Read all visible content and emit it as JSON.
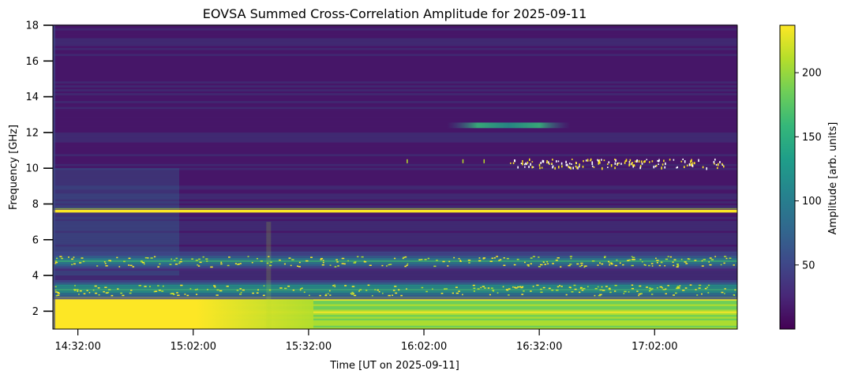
{
  "chart_data": {
    "type": "heatmap",
    "title": "EOVSA Summed Cross-Correlation Amplitude for 2025-09-11",
    "xlabel": "Time [UT on 2025-09-11]",
    "ylabel": "Frequency [GHz]",
    "colorbar_label": "Amplitude [arb. units]",
    "colormap": "viridis",
    "colors": [
      "#440154",
      "#482878",
      "#3e4989",
      "#31688e",
      "#26828e",
      "#1f9e89",
      "#35b779",
      "#6ece58",
      "#b5de2b",
      "#fde725"
    ],
    "xlim": [
      "14:25:30",
      "17:23:30"
    ],
    "ylim": [
      1.0,
      18.0
    ],
    "clim": [
      0,
      237
    ],
    "x_ticks": [
      "14:32:00",
      "15:02:00",
      "15:32:00",
      "16:02:00",
      "16:32:00",
      "17:02:00"
    ],
    "y_ticks": [
      2,
      4,
      6,
      8,
      10,
      12,
      14,
      16,
      18
    ],
    "colorbar_ticks": [
      50,
      100,
      150,
      200
    ],
    "features": [
      {
        "kind": "continuum",
        "freq_range": [
          1.0,
          2.8
        ],
        "amplitude": 237
      },
      {
        "kind": "band",
        "freq": 3.2,
        "amplitude": 190
      },
      {
        "kind": "band",
        "freq": 4.8,
        "amplitude": 150
      },
      {
        "kind": "line",
        "freq": 7.6,
        "amplitude": 237
      },
      {
        "kind": "burst",
        "freq": 12.4,
        "time_range": [
          "16:08:00",
          "16:40:00"
        ],
        "amplitude": 120
      },
      {
        "kind": "sporadic",
        "freq": 10.3,
        "time_range": [
          "16:24:00",
          "17:20:00"
        ],
        "amplitude": 237
      }
    ]
  }
}
